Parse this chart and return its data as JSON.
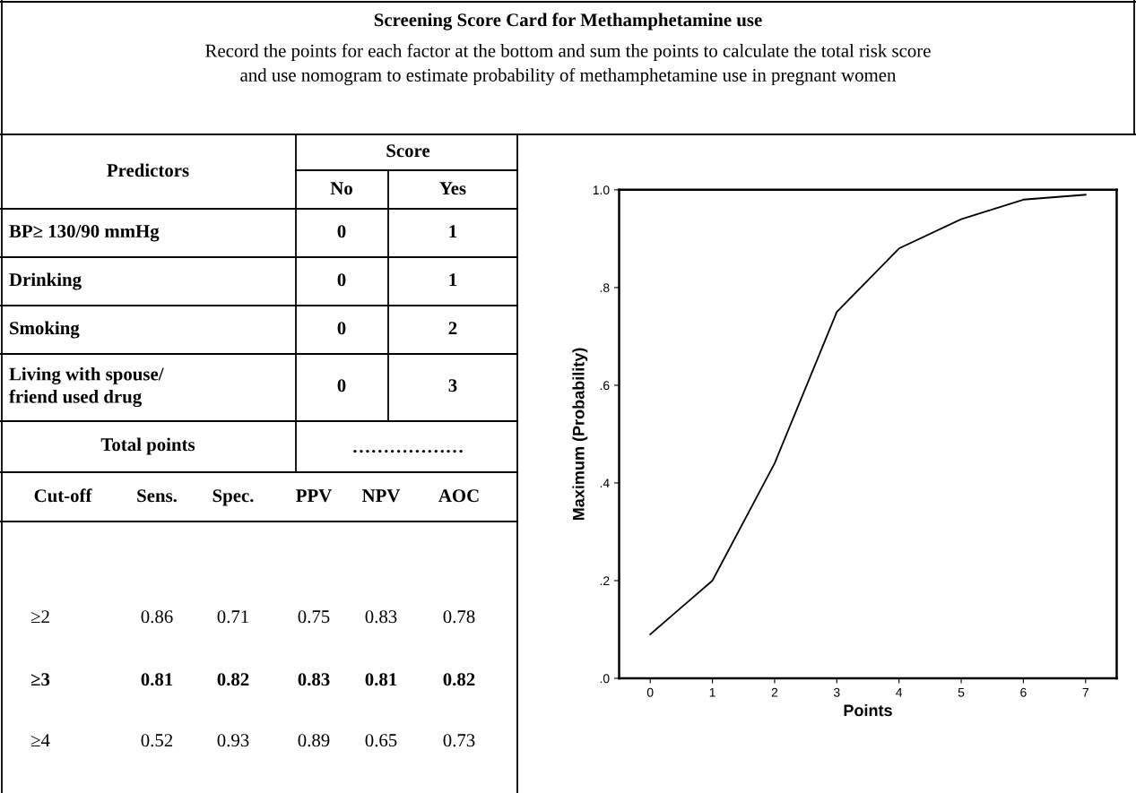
{
  "chart_data": [
    {
      "type": "other",
      "title": "Screening Score Card for Methamphetamine use",
      "subtitle": "Record the points for each factor at the bottom and sum the points to calculate the total risk score\nand use nomogram to estimate probability of methamphetamine use in pregnant women",
      "annotations": [
        "Predictors",
        "Score",
        "No",
        "Yes",
        "BP≥ 130/90 mmHg",
        "0",
        "1",
        "Drinking",
        "0",
        "1",
        "Smoking",
        "0",
        "2",
        "Living with spouse/\nfriend used drug",
        "0",
        "3",
        "Total points",
        "………………",
        "Cut-off",
        "Sens.",
        "Spec.",
        "PPV",
        "NPV",
        "AOC",
        "≥2",
        "0.86",
        "0.71",
        "0.75",
        "0.83",
        "0.78",
        "≥3",
        "0.81",
        "0.82",
        "0.83",
        "0.81",
        "0.82",
        "≥4",
        "0.52",
        "0.93",
        "0.89",
        "0.65",
        "0.73"
      ]
    },
    {
      "type": "line",
      "xlabel": "Points",
      "ylabel": "Maximum (Probability)",
      "x": [
        0,
        1,
        2,
        3,
        4,
        5,
        6,
        7
      ],
      "values": [
        0.09,
        0.2,
        0.44,
        0.75,
        0.88,
        0.94,
        0.98,
        0.99
      ],
      "color": "#000000",
      "xlim": [
        -0.5,
        7.5
      ],
      "xticks": [
        0,
        1,
        2,
        3,
        4,
        5,
        6,
        7
      ],
      "ylim": [
        0,
        1
      ],
      "yticks": [
        {
          "value": 0,
          "label": ".0"
        },
        {
          "value": 0.2,
          "label": ".2"
        },
        {
          "value": 0.4,
          "label": ".4"
        },
        {
          "value": 0.6,
          "label": ".6"
        },
        {
          "value": 0.8,
          "label": ".8"
        },
        {
          "value": 1,
          "label": "1.0"
        }
      ]
    }
  ]
}
